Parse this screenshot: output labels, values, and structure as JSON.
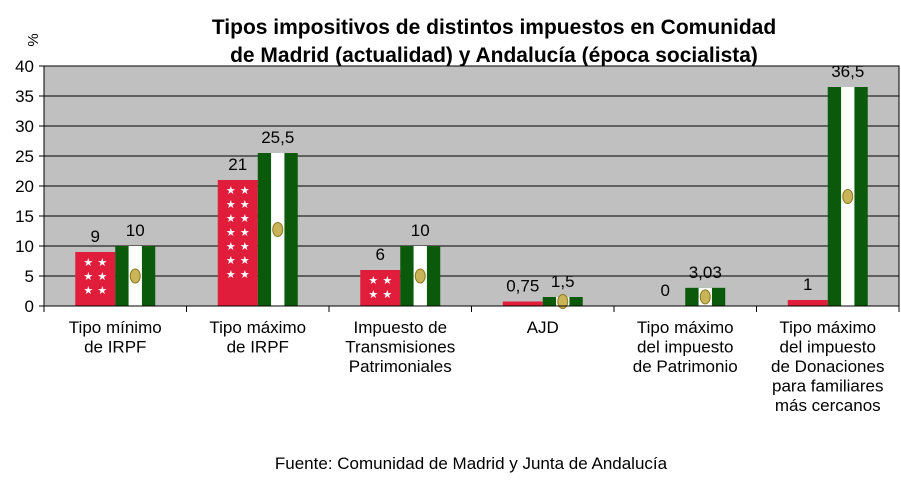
{
  "chart_data": {
    "type": "bar",
    "title_lines": [
      "Tipos impositivos de distintos impuestos en Comunidad",
      "de Madrid (actualidad) y Andalucía (época socialista)"
    ],
    "ylabel": "%",
    "ylim": [
      0,
      40
    ],
    "yticks": [
      "0",
      "5",
      "10",
      "15",
      "20",
      "25",
      "30",
      "35",
      "40"
    ],
    "grid": true,
    "categories": [
      [
        "Tipo mínimo",
        "de IRPF"
      ],
      [
        "Tipo máximo",
        "de IRPF"
      ],
      [
        "Impuesto de",
        "Transmisiones",
        "Patrimoniales"
      ],
      [
        "AJD"
      ],
      [
        "Tipo máximo",
        "del impuesto",
        "de Patrimonio"
      ],
      [
        "Tipo máximo",
        "del impuesto",
        "de Donaciones",
        "para familiares",
        "más cercanos"
      ]
    ],
    "series": [
      {
        "name": "Comunidad de Madrid",
        "values": [
          9,
          21,
          6,
          0.75,
          0,
          1
        ],
        "labels": [
          "9",
          "21",
          "6",
          "0,75",
          "0",
          "1"
        ],
        "color": "#e11d3c"
      },
      {
        "name": "Andalucía",
        "values": [
          10,
          25.5,
          10,
          1.5,
          3.03,
          36.5
        ],
        "labels": [
          "10",
          "25,5",
          "10",
          "1,5",
          "3,03",
          "36,5"
        ],
        "color": "#0b5a0b"
      }
    ],
    "source": "Fuente: Comunidad de Madrid y Junta de Andalucía"
  }
}
